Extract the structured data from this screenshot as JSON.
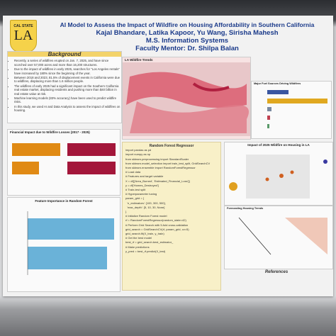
{
  "header": {
    "logo_top": "CAL STATE",
    "logo_mark": "LA",
    "title": "AI Model to Assess the Impact of Wildfire on Housing Affordability in Southern California",
    "authors": "Kajal Bhandare, Latika Kapoor, Yu Wang, Sirisha Mahesh",
    "program": "M.S. Information Systems",
    "mentor": "Faculty Mentor: Dr. Shilpa Balan"
  },
  "background": {
    "heading": "Background",
    "bullets": [
      "Recently, a series of wildfires erupted on Jan. 7, 2025, and have since scorched over 57,000 acres and more than 16,200 structures.",
      "Due to the impact of wildfires in early 2025, searches for \"Los Angeles rentals\" have increased by 180% since the beginning of the year.",
      "Between 2018 and 2023, 81.5% of displacement events in California were due to wildfires, displacing more than 1.6 million people.",
      "The wildfires of early 2025 had a significant impact on the Southern California real estate market, displacing residents and pushing more than $40 billion in real estate value at risk.",
      "Machine learning models (83% accuracy) have been used to predict wildfire risks.",
      "In this study, we used AI and Data Analysis to assess the impact of wildfires on housing."
    ]
  },
  "panels": {
    "wildfire_trends": "LA Wildfire Trends",
    "fuel_sources": "Major Fuel Sources Driving Wildfires",
    "financial_impact": "Financial Impact due to Wildfire Losses (2017 - 2025)",
    "feature_importance": "Feature Importance in Random Forest",
    "random_forest": "Random Forest Regressor",
    "housing_impact": "Impact of 2025 Wildfire on Housing in LA",
    "housing_trends": "Forecasting Housing Trends"
  },
  "code": [
    "import pandas as pd",
    "import numpy as np",
    "from sklearn.preprocessing import StandardScaler",
    "from sklearn.model_selection import train_test_split, GridSearchCV",
    "from sklearn.ensemble import RandomForestRegressor",
    "# Load data",
    "# Features and target variable",
    "X = df[['Area_Burned', 'Estimated_Financial_Loss']]",
    "y = df['Homes_Destroyed']",
    "# Train-test split",
    "# Hyperparameter tuning",
    "param_grid = {",
    "  'n_estimators': [100, 300, 500],",
    "  'max_depth': [5, 10, 30, None]",
    "}",
    "# Initialize Random Forest model",
    "rf = RandomForestRegressor(random_state=42)",
    "# Perform Grid Search with 5-fold cross-validation",
    "grid_search = GridSearchCV(rf, param_grid, cv=5)",
    "grid_search.fit(X_train, y_train)",
    "# Get the best model",
    "best_rf = grid_search.best_estimator_",
    "# Make predictions",
    "y_pred = best_rf.predict(X_test)"
  ],
  "references": {
    "heading": "References"
  }
}
